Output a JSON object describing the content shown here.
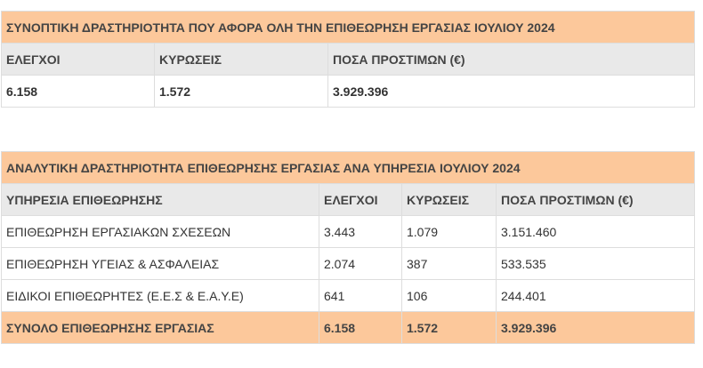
{
  "summary": {
    "title": "ΣΥΝΟΠΤΙΚΗ ΔΡΑΣΤΗΡΙΟΤΗΤΑ ΠΟΥ ΑΦΟΡΑ ΟΛΗ ΤΗΝ ΕΠΙΘΕΩΡΗΣΗ ΕΡΓΑΣΙΑΣ ΙΟΥΛΙΟΥ 2024",
    "headers": [
      "ΕΛΕΓΧΟΙ",
      "ΚΥΡΩΣΕΙΣ",
      "ΠΟΣΑ ΠΡΟΣΤΙΜΩΝ (€)"
    ],
    "values": [
      "6.158",
      "1.572",
      "3.929.396"
    ]
  },
  "detail": {
    "title": "ΑΝΑΛΥΤΙΚΗ ΔΡΑΣΤΗΡΙΟΤΗΤΑ ΕΠΙΘΕΩΡΗΣΗΣ ΕΡΓΑΣΙΑΣ ΑΝΑ ΥΠΗΡΕΣΙΑ ΙΟΥΛΙΟΥ 2024",
    "headers": [
      "ΥΠΗΡΕΣΙΑ ΕΠΙΘΕΩΡΗΣΗΣ",
      "ΕΛΕΓΧΟΙ",
      "ΚΥΡΩΣΕΙΣ",
      "ΠΟΣΑ ΠΡΟΣΤΙΜΩΝ (€)"
    ],
    "rows": [
      [
        "ΕΠΙΘΕΩΡΗΣΗ ΕΡΓΑΣΙΑΚΩΝ ΣΧΕΣΕΩΝ",
        "3.443",
        "1.079",
        "3.151.460"
      ],
      [
        "ΕΠΙΘΕΩΡΗΣΗ ΥΓΕΙΑΣ & ΑΣΦΑΛΕΙΑΣ",
        "2.074",
        "387",
        "533.535"
      ],
      [
        "ΕΙΔΙΚΟΙ ΕΠΙΘΕΩΡΗΤΕΣ (Ε.Ε.Σ & Ε.Α.Υ.Ε)",
        "641",
        "106",
        "244.401"
      ]
    ],
    "total": [
      "ΣΥΝΟΛΟ ΕΠΙΘΕΩΡΗΣΗΣ ΕΡΓΑΣΙΑΣ",
      "6.158",
      "1.572",
      "3.929.396"
    ]
  }
}
